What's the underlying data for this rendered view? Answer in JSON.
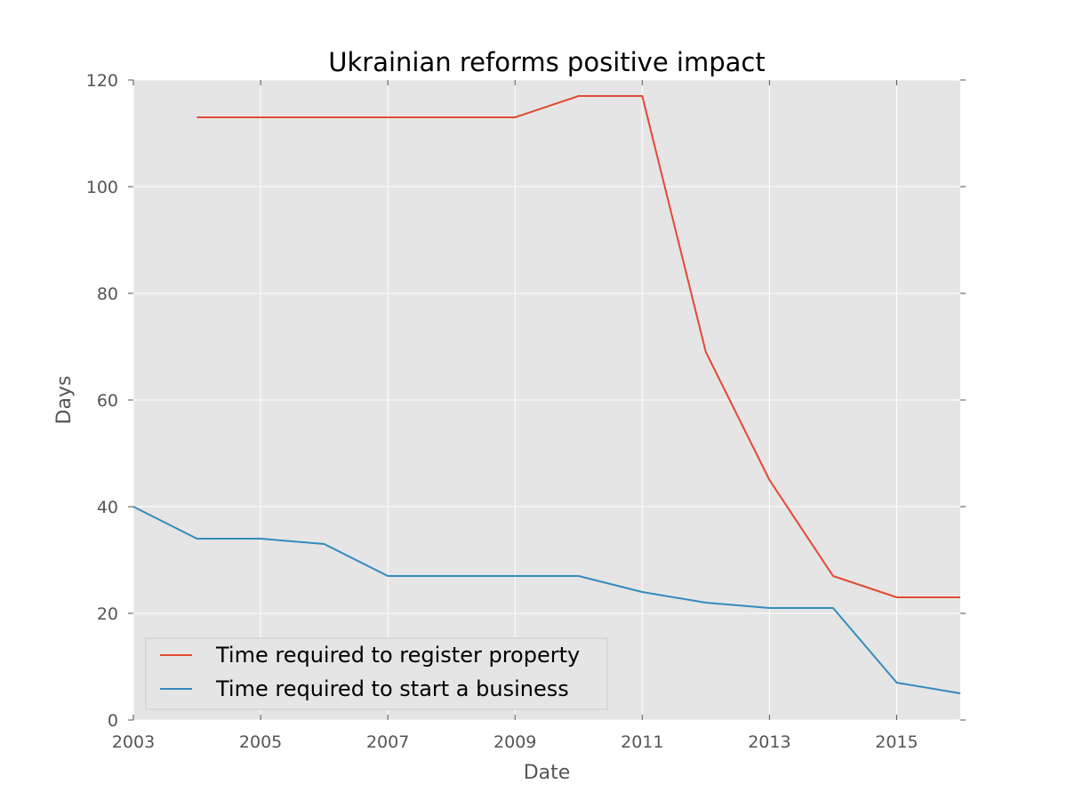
{
  "chart_data": {
    "type": "line",
    "title": "Ukrainian reforms positive impact",
    "xlabel": "Date",
    "ylabel": "Days",
    "xlim": [
      2003,
      2016
    ],
    "ylim": [
      0,
      120
    ],
    "x_ticks": [
      "2003",
      "2005",
      "2007",
      "2009",
      "2011",
      "2013",
      "2015"
    ],
    "y_ticks": [
      "0",
      "20",
      "40",
      "60",
      "80",
      "100",
      "120"
    ],
    "grid": true,
    "legend_position": "bottom-left",
    "background_color": "#e5e5e5",
    "series": [
      {
        "name": "Time required to register property",
        "color": "#e24a33",
        "x": [
          2004,
          2005,
          2006,
          2007,
          2008,
          2009,
          2010,
          2011,
          2012,
          2013,
          2014,
          2015,
          2016
        ],
        "values": [
          113,
          113,
          113,
          113,
          113,
          113,
          117,
          117,
          69,
          45,
          27,
          23,
          23
        ]
      },
      {
        "name": "Time required to start a business",
        "color": "#348abd",
        "x": [
          2003,
          2004,
          2005,
          2006,
          2007,
          2008,
          2009,
          2010,
          2011,
          2012,
          2013,
          2014,
          2015,
          2016
        ],
        "values": [
          40,
          34,
          34,
          33,
          27,
          27,
          27,
          27,
          24,
          22,
          21,
          21,
          7,
          5
        ]
      }
    ]
  }
}
